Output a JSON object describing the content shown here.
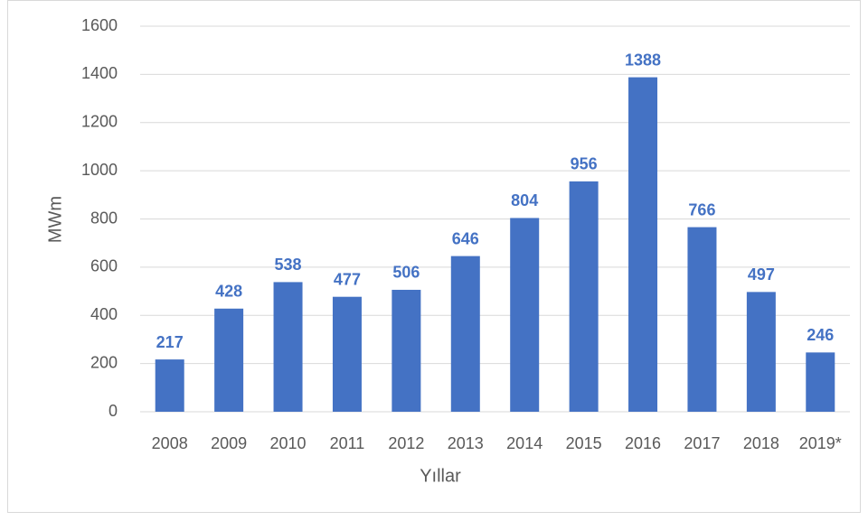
{
  "chart_data": {
    "type": "bar",
    "categories": [
      "2008",
      "2009",
      "2010",
      "2011",
      "2012",
      "2013",
      "2014",
      "2015",
      "2016",
      "2017",
      "2018",
      "2019*"
    ],
    "values": [
      217,
      428,
      538,
      477,
      506,
      646,
      804,
      956,
      1388,
      766,
      497,
      246
    ],
    "color": "#4472c4",
    "ylabel": "MWm",
    "xlabel": "Yıllar",
    "ylim": [
      0,
      1600
    ],
    "yticks": [
      0,
      200,
      400,
      600,
      800,
      1000,
      1200,
      1400,
      1600
    ],
    "grid": true
  }
}
